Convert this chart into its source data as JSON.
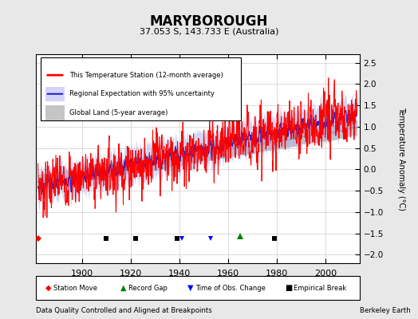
{
  "title": "MARYBOROUGH",
  "subtitle": "37.053 S, 143.733 E (Australia)",
  "ylabel": "Temperature Anomaly (°C)",
  "xlabel_left": "Data Quality Controlled and Aligned at Breakpoints",
  "xlabel_right": "Berkeley Earth",
  "year_start": 1882,
  "year_end": 2013,
  "ylim": [
    -2.2,
    2.7
  ],
  "yticks": [
    -2,
    -1.5,
    -1,
    -0.5,
    0,
    0.5,
    1,
    1.5,
    2,
    2.5
  ],
  "xticks": [
    1900,
    1920,
    1940,
    1960,
    1980,
    2000
  ],
  "bg_color": "#e8e8e8",
  "plot_bg_color": "#ffffff",
  "empirical_break_years": [
    1910,
    1922,
    1939,
    1979
  ],
  "record_gap_years": [
    1965
  ],
  "time_obs_change_years": [
    1941,
    1953
  ],
  "station_move_years": [
    1882
  ],
  "legend_entries": [
    "This Temperature Station (12-month average)",
    "Regional Expectation with 95% uncertainty",
    "Global Land (5-year average)"
  ]
}
